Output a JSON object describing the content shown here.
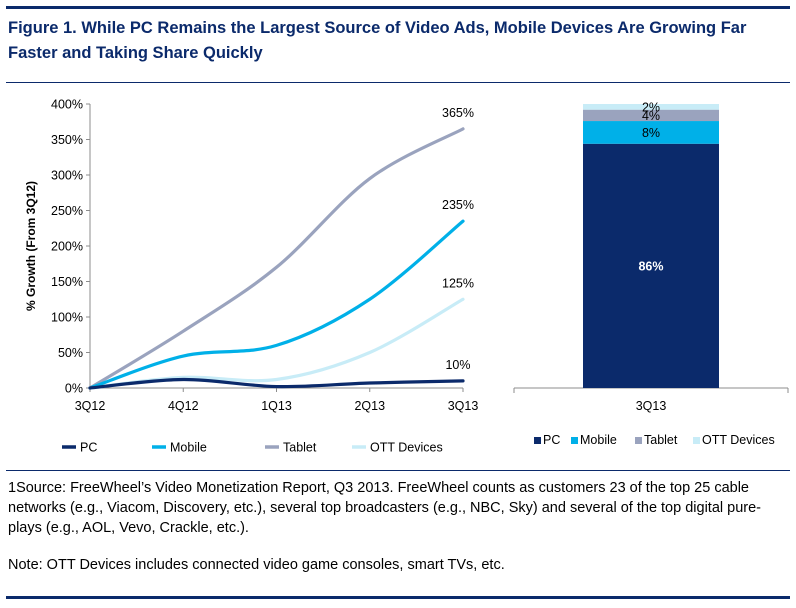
{
  "header": {
    "title": "Figure 1. While PC Remains the Largest Source of Video Ads, Mobile Devices Are Growing Far Faster and Taking Share Quickly"
  },
  "colors": {
    "rule": "#0b2a6b",
    "pc": "#0b2a6b",
    "mobile": "#00b0e8",
    "tablet": "#9aa3be",
    "ott": "#c8ecf7"
  },
  "chart_data": [
    {
      "type": "line",
      "title": "",
      "ylabel": "% Growth (From 3Q12)",
      "xlabel": "",
      "categories": [
        "3Q12",
        "4Q12",
        "1Q13",
        "2Q13",
        "3Q13"
      ],
      "ylim": [
        0,
        400
      ],
      "yticks": [
        "0%",
        "50%",
        "100%",
        "150%",
        "200%",
        "250%",
        "300%",
        "350%",
        "400%"
      ],
      "grid": false,
      "legend": "bottom",
      "series": [
        {
          "name": "PC",
          "color": "#0b2a6b",
          "values": [
            0,
            12,
            2,
            7,
            10
          ],
          "end_label": "10%"
        },
        {
          "name": "Mobile",
          "color": "#00b0e8",
          "values": [
            0,
            45,
            60,
            125,
            235
          ],
          "end_label": "235%"
        },
        {
          "name": "Tablet",
          "color": "#9aa3be",
          "values": [
            0,
            80,
            170,
            295,
            365
          ],
          "end_label": "365%"
        },
        {
          "name": "OTT Devices",
          "color": "#c8ecf7",
          "values": [
            0,
            15,
            12,
            50,
            125
          ],
          "end_label": "125%"
        }
      ]
    },
    {
      "type": "bar",
      "stacked": true,
      "title": "",
      "categories": [
        "3Q13"
      ],
      "ylim": [
        0,
        100
      ],
      "legend": "bottom",
      "series": [
        {
          "name": "PC",
          "color": "#0b2a6b",
          "values": [
            86
          ],
          "label": "86%"
        },
        {
          "name": "Mobile",
          "color": "#00b0e8",
          "values": [
            8
          ],
          "label": "8%"
        },
        {
          "name": "Tablet",
          "color": "#9aa3be",
          "values": [
            4
          ],
          "label": "4%"
        },
        {
          "name": "OTT Devices",
          "color": "#c8ecf7",
          "values": [
            2
          ],
          "label": "2%"
        }
      ]
    }
  ],
  "footnotes": {
    "source": "1Source: FreeWheel’s Video Monetization Report, Q3 2013. FreeWheel counts as customers 23 of the top 25 cable networks (e.g., Viacom, Discovery, etc.), several top broadcasters (e.g., NBC, Sky) and several of the top digital pure-plays (e.g., AOL, Vevo, Crackle, etc.).",
    "note": "Note: OTT Devices includes connected video game consoles, smart TVs, etc."
  }
}
